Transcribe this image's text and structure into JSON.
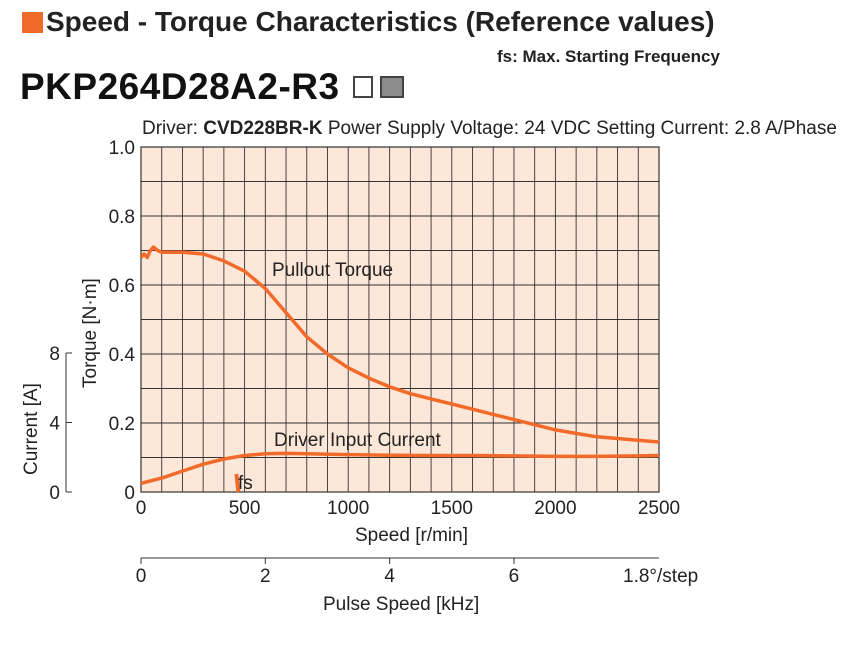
{
  "header": {
    "title": "Speed - Torque Characteristics (Reference values)",
    "fs_note": "fs: Max. Starting Frequency",
    "model": "PKP264D28A2-R3",
    "accent_color": "#f26a2a",
    "model_gray_box_color": "#8c8c8c"
  },
  "conditions": {
    "driver_label": "Driver:",
    "driver_model": "CVD228BR-K",
    "supply": "Power Supply Voltage: 24 VDC",
    "current": "Setting Current: 2.8 A/Phase"
  },
  "chart_data": {
    "type": "line",
    "plot_background": "#fde7d8",
    "line_color": "#f26a2a",
    "grid": true,
    "x": {
      "label": "Speed [r/min]",
      "range": [
        0,
        2500
      ],
      "ticks": [
        "0",
        "500",
        "1000",
        "1500",
        "2000",
        "2500"
      ],
      "tick_values": [
        0,
        500,
        1000,
        1500,
        2000,
        2500
      ]
    },
    "y_torque": {
      "label": "Torque [N·m]",
      "range": [
        0,
        1.0
      ],
      "ticks": [
        "0",
        "0.2",
        "0.4",
        "0.6",
        "0.8",
        "1.0"
      ],
      "tick_values": [
        0,
        0.2,
        0.4,
        0.6,
        0.8,
        1.0
      ]
    },
    "y_current": {
      "label": "Current [A]",
      "range": [
        0,
        8
      ],
      "ticks": [
        "0",
        "4",
        "8"
      ],
      "tick_values": [
        0,
        4,
        8
      ]
    },
    "x_pulse": {
      "label": "Pulse Speed [kHz]",
      "range": [
        0,
        8.333
      ],
      "ticks": [
        "0",
        "2",
        "4",
        "6"
      ],
      "tick_values": [
        0,
        2,
        4,
        6
      ],
      "step_note": "1.8°/step"
    },
    "series": [
      {
        "name": "Pullout Torque",
        "axis": "torque",
        "x": [
          0,
          15,
          30,
          45,
          60,
          80,
          100,
          150,
          200,
          300,
          400,
          500,
          600,
          700,
          800,
          900,
          1000,
          1100,
          1200,
          1300,
          1400,
          1500,
          1600,
          1700,
          1800,
          1900,
          2000,
          2100,
          2200,
          2300,
          2400,
          2500
        ],
        "values": [
          0.68,
          0.69,
          0.68,
          0.7,
          0.71,
          0.7,
          0.695,
          0.695,
          0.695,
          0.69,
          0.67,
          0.64,
          0.59,
          0.52,
          0.45,
          0.4,
          0.36,
          0.33,
          0.305,
          0.285,
          0.27,
          0.255,
          0.24,
          0.225,
          0.21,
          0.195,
          0.18,
          0.17,
          0.16,
          0.155,
          0.15,
          0.145
        ]
      },
      {
        "name": "Driver Input Current",
        "axis": "current",
        "x": [
          0,
          100,
          200,
          300,
          400,
          500,
          600,
          700,
          800,
          1000,
          1200,
          1400,
          1600,
          1800,
          2000,
          2200,
          2400,
          2500
        ],
        "values": [
          0.5,
          0.8,
          1.2,
          1.6,
          1.9,
          2.1,
          2.2,
          2.22,
          2.2,
          2.15,
          2.12,
          2.1,
          2.1,
          2.08,
          2.05,
          2.05,
          2.08,
          2.1
        ]
      }
    ],
    "annotations": {
      "fs_label": "fs",
      "fs_speed": 470,
      "pullout_label": "Pullout Torque",
      "current_label": "Driver Input Current"
    }
  }
}
